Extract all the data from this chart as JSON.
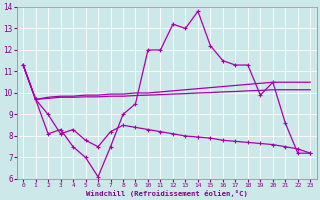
{
  "xlabel": "Windchill (Refroidissement éolien,°C)",
  "xlim": [
    -0.5,
    23.5
  ],
  "ylim": [
    6,
    14
  ],
  "yticks": [
    6,
    7,
    8,
    9,
    10,
    11,
    12,
    13,
    14
  ],
  "xticks": [
    0,
    1,
    2,
    3,
    4,
    5,
    6,
    7,
    8,
    9,
    10,
    11,
    12,
    13,
    14,
    15,
    16,
    17,
    18,
    19,
    20,
    21,
    22,
    23
  ],
  "bg_color": "#cce8e8",
  "line_color": "#aa00aa",
  "line_upper_x": [
    0,
    1,
    2,
    3,
    4,
    5,
    6,
    7,
    8,
    9,
    10,
    11,
    12,
    13,
    14,
    15,
    16,
    17,
    18,
    19,
    20,
    21,
    22,
    23
  ],
  "line_upper_y": [
    11.3,
    9.7,
    9.8,
    9.85,
    9.85,
    9.9,
    9.9,
    9.95,
    9.95,
    10.0,
    10.0,
    10.05,
    10.1,
    10.15,
    10.2,
    10.25,
    10.3,
    10.35,
    10.4,
    10.45,
    10.5,
    10.5,
    10.5,
    10.5
  ],
  "line_lower_x": [
    0,
    1,
    2,
    3,
    4,
    5,
    6,
    7,
    8,
    9,
    10,
    11,
    12,
    13,
    14,
    15,
    16,
    17,
    18,
    19,
    20,
    21,
    22,
    23
  ],
  "line_lower_y": [
    11.3,
    9.7,
    9.75,
    9.8,
    9.8,
    9.82,
    9.82,
    9.85,
    9.85,
    9.88,
    9.9,
    9.92,
    9.95,
    9.97,
    10.0,
    10.02,
    10.05,
    10.07,
    10.1,
    10.12,
    10.15,
    10.15,
    10.15,
    10.15
  ],
  "line_wave_x": [
    0,
    1,
    2,
    3,
    4,
    5,
    6,
    7,
    8,
    9,
    10,
    11,
    12,
    13,
    14,
    15,
    16,
    17,
    18,
    19,
    20,
    21,
    22,
    23
  ],
  "line_wave_y": [
    11.3,
    9.7,
    8.1,
    8.3,
    7.5,
    7.0,
    6.1,
    7.5,
    9.0,
    9.5,
    12.0,
    12.0,
    13.2,
    13.0,
    13.8,
    12.2,
    11.5,
    11.3,
    11.3,
    9.9,
    10.5,
    8.6,
    7.2,
    7.2
  ],
  "line_down_x": [
    0,
    1,
    2,
    3,
    4,
    5,
    6,
    7,
    8,
    9,
    10,
    11,
    12,
    13,
    14,
    15,
    16,
    17,
    18,
    19,
    20,
    21,
    22,
    23
  ],
  "line_down_y": [
    11.3,
    9.7,
    9.0,
    8.1,
    8.3,
    7.8,
    7.5,
    8.2,
    8.5,
    8.4,
    8.3,
    8.2,
    8.1,
    8.0,
    7.95,
    7.9,
    7.8,
    7.75,
    7.7,
    7.65,
    7.6,
    7.5,
    7.4,
    7.2
  ]
}
